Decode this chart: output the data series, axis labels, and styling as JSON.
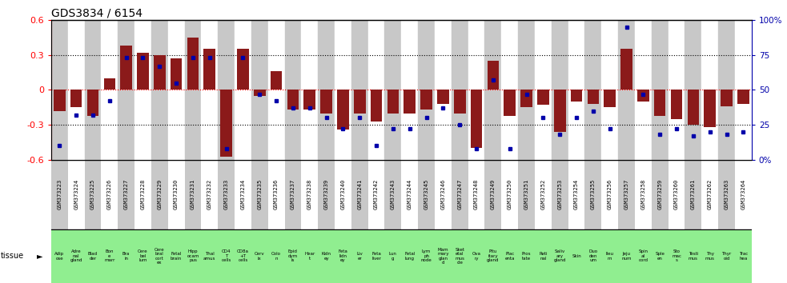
{
  "title": "GDS3834 / 6154",
  "gsm_ids": [
    "GSM373223",
    "GSM373224",
    "GSM373225",
    "GSM373226",
    "GSM373227",
    "GSM373228",
    "GSM373229",
    "GSM373230",
    "GSM373231",
    "GSM373232",
    "GSM373233",
    "GSM373234",
    "GSM373235",
    "GSM373236",
    "GSM373237",
    "GSM373238",
    "GSM373239",
    "GSM373240",
    "GSM373241",
    "GSM373242",
    "GSM373243",
    "GSM373244",
    "GSM373245",
    "GSM373246",
    "GSM373247",
    "GSM373248",
    "GSM373249",
    "GSM373250",
    "GSM373251",
    "GSM373252",
    "GSM373253",
    "GSM373254",
    "GSM373255",
    "GSM373256",
    "GSM373257",
    "GSM373258",
    "GSM373259",
    "GSM373260",
    "GSM373261",
    "GSM373262",
    "GSM373263",
    "GSM373264"
  ],
  "tissue_labels": [
    "Adip\nose",
    "Adre\nnal\ngland",
    "Blad\nder",
    "Bon\ne\nmarr",
    "Bra\nin",
    "Cere\nbel\nlum",
    "Cere\nbral\ncort\nex",
    "Fetal\nbrain",
    "Hipp\nocam\npus",
    "Thal\namus",
    "CD4\nT\ncells",
    "CD8a\n+T\ncells",
    "Cerv\nix",
    "Colo\nn",
    "Epid\ndym\nis",
    "Hear\nt",
    "Kidn\ney",
    "Feta\nlidn\ney",
    "Liv\ner",
    "Feta\nliver",
    "Lun\ng",
    "Fetal\nlung",
    "Lym\nph\nnode",
    "Mam\nmary\nglan\nd",
    "Sket\netal\nmus\ncle",
    "Ova\nry",
    "Pitu\nitary\ngland",
    "Plac\nenta",
    "Pros\ntate",
    "Reti\nnal",
    "Saliv\nary\ngland",
    "Skin",
    "Duo\nden\num",
    "Ileu\nm",
    "Jeju\nnum",
    "Spin\nal\ncord",
    "Sple\nen",
    "Sto\nmac\ns",
    "Testi\nmus",
    "Thy\nmus",
    "Thyr\noid",
    "Trac\nhea"
  ],
  "log10_ratio": [
    -0.18,
    -0.15,
    -0.22,
    0.1,
    0.38,
    0.32,
    0.3,
    0.27,
    0.45,
    0.35,
    -0.57,
    0.35,
    -0.05,
    0.16,
    -0.17,
    -0.17,
    -0.2,
    -0.34,
    -0.2,
    -0.27,
    -0.2,
    -0.2,
    -0.17,
    -0.12,
    -0.2,
    -0.5,
    0.25,
    -0.22,
    -0.15,
    -0.13,
    -0.36,
    -0.1,
    -0.12,
    -0.15,
    0.35,
    -0.1,
    -0.22,
    -0.25,
    -0.3,
    -0.32,
    -0.14,
    -0.12
  ],
  "percentile": [
    10,
    32,
    32,
    42,
    73,
    73,
    67,
    55,
    73,
    73,
    8,
    73,
    47,
    42,
    37,
    37,
    30,
    22,
    30,
    10,
    22,
    22,
    30,
    37,
    25,
    8,
    57,
    8,
    47,
    30,
    18,
    30,
    35,
    22,
    95,
    47,
    18,
    22,
    17,
    20,
    18,
    20
  ],
  "bar_color": "#8B1A1A",
  "dot_color": "#0000AA",
  "bg_color_odd": "#C8C8C8",
  "bg_color_even": "#FFFFFF",
  "green_bg": "#90EE90",
  "ylim": [
    -0.6,
    0.6
  ],
  "yticks_left": [
    -0.6,
    -0.3,
    0.0,
    0.3,
    0.6
  ],
  "yticks_right": [
    0,
    25,
    50,
    75,
    100
  ],
  "right_ylabels": [
    "0%",
    "25",
    "50",
    "75",
    "100%"
  ]
}
